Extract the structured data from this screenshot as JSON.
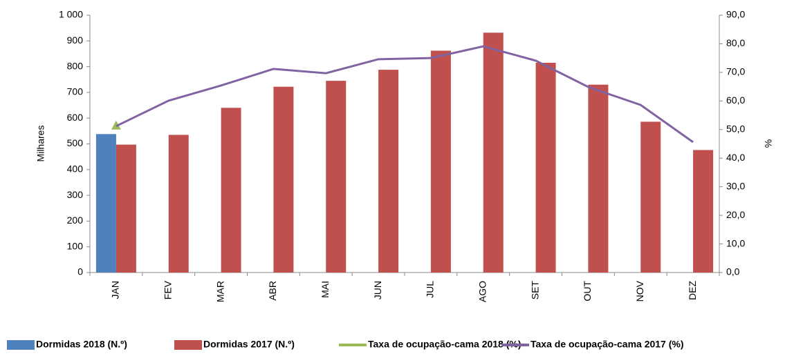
{
  "chart_data": {
    "type": "bar-line",
    "y_label": "Milhares",
    "y2_label": "%",
    "categories": [
      "JAN",
      "FEV",
      "MAR",
      "ABR",
      "MAI",
      "JUN",
      "JUL",
      "AGO",
      "SET",
      "OUT",
      "NOV",
      "DEZ"
    ],
    "ylim": [
      0,
      1000
    ],
    "yticks": [
      0,
      100,
      200,
      300,
      400,
      500,
      600,
      700,
      800,
      900,
      {
        "value": 1000,
        "label": "1 000"
      }
    ],
    "y2lim": [
      0,
      90
    ],
    "y2ticks": [
      {
        "value": 0,
        "label": "0,0"
      },
      {
        "value": 10,
        "label": "10,0"
      },
      {
        "value": 20,
        "label": "20,0"
      },
      {
        "value": 30,
        "label": "30,0"
      },
      {
        "value": 40,
        "label": "40,0"
      },
      {
        "value": 50,
        "label": "50,0"
      },
      {
        "value": 60,
        "label": "60,0"
      },
      {
        "value": 70,
        "label": "70,0"
      },
      {
        "value": 80,
        "label": "80,0"
      },
      {
        "value": 90,
        "label": "90,0"
      }
    ],
    "series": [
      {
        "name": "Dormidas 2018 (N.º)",
        "kind": "bar",
        "color": "#4f81bd",
        "values": [
          538,
          null,
          null,
          null,
          null,
          null,
          null,
          null,
          null,
          null,
          null,
          null
        ]
      },
      {
        "name": "Dormidas 2017 (N.º)",
        "kind": "bar",
        "color": "#c0504d",
        "values": [
          497,
          535,
          640,
          722,
          745,
          788,
          862,
          932,
          815,
          730,
          586,
          476
        ]
      },
      {
        "name": "Taxa de ocupação-cama 2018 (%)",
        "kind": "line",
        "axis": "y2",
        "color": "#9bbb59",
        "values": [
          51.2,
          null,
          null,
          null,
          null,
          null,
          null,
          null,
          null,
          null,
          null,
          null
        ]
      },
      {
        "name": "Taxa de ocupação-cama 2017 (%)",
        "kind": "line",
        "axis": "y2",
        "color": "#8064a2",
        "values": [
          51.2,
          60.1,
          65.4,
          71.2,
          69.7,
          74.6,
          75.0,
          79.1,
          74.1,
          64.9,
          58.6,
          45.6
        ]
      }
    ]
  }
}
